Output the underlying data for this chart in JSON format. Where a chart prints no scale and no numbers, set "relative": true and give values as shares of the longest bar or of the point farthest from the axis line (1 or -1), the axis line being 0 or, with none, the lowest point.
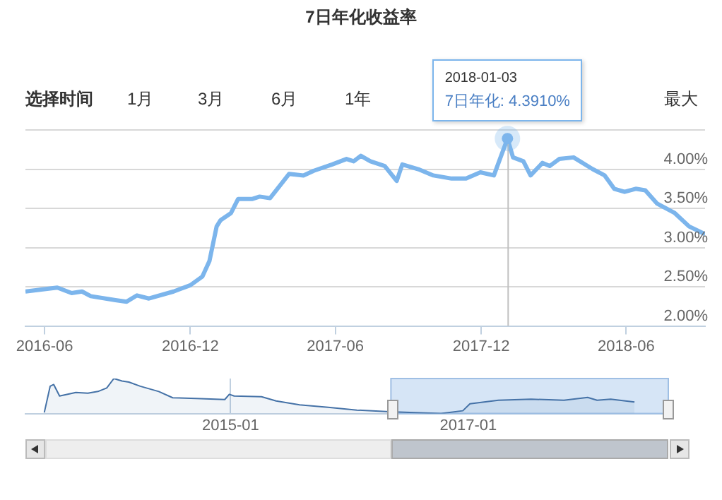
{
  "chart_data": [
    {
      "type": "line",
      "title": "7日年化收益率",
      "color": "#7cb5ec",
      "grid": "y",
      "legend": false,
      "marker": "none",
      "x": [
        "2016-05-08",
        "2016-06-17",
        "2016-07-05",
        "2016-07-18",
        "2016-07-29",
        "2016-08-29",
        "2016-09-12",
        "2016-09-25",
        "2016-10-10",
        "2016-11-10",
        "2016-12-01",
        "2016-12-16",
        "2016-12-25",
        "2017-01-03",
        "2017-01-08",
        "2017-01-21",
        "2017-01-30",
        "2017-02-17",
        "2017-02-26",
        "2017-03-11",
        "2017-04-04",
        "2017-04-22",
        "2017-05-05",
        "2017-05-28",
        "2017-06-15",
        "2017-06-24",
        "2017-07-03",
        "2017-07-15",
        "2017-08-02",
        "2017-08-17",
        "2017-08-24",
        "2017-09-13",
        "2017-10-02",
        "2017-10-25",
        "2017-11-12",
        "2017-11-30",
        "2017-12-17",
        "2018-01-03",
        "2018-01-10",
        "2018-01-23",
        "2018-02-01",
        "2018-02-16",
        "2018-02-25",
        "2018-03-09",
        "2018-03-27",
        "2018-04-20",
        "2018-05-05",
        "2018-05-17",
        "2018-05-30",
        "2018-06-13",
        "2018-06-25",
        "2018-07-10",
        "2018-08-01",
        "2018-08-19",
        "2018-09-08"
      ],
      "values": [
        2.44,
        2.49,
        2.42,
        2.44,
        2.38,
        2.33,
        2.31,
        2.39,
        2.35,
        2.44,
        2.52,
        2.63,
        2.83,
        3.27,
        3.35,
        3.44,
        3.62,
        3.62,
        3.65,
        3.63,
        3.94,
        3.92,
        3.98,
        4.06,
        4.13,
        4.1,
        4.17,
        4.1,
        4.04,
        3.85,
        4.06,
        4.0,
        3.92,
        3.88,
        3.88,
        3.96,
        3.92,
        4.39,
        4.15,
        4.1,
        3.92,
        4.08,
        4.04,
        4.13,
        4.15,
        4.0,
        3.92,
        3.75,
        3.71,
        3.75,
        3.73,
        3.56,
        3.44,
        3.27,
        3.17
      ],
      "xlim": [
        "2016-05-08",
        "2018-09-08"
      ],
      "xticks": [
        {
          "value": "2016-06-01",
          "label": "2016-06"
        },
        {
          "value": "2016-12-01",
          "label": "2016-12"
        },
        {
          "value": "2017-06-01",
          "label": "2017-06"
        },
        {
          "value": "2017-12-01",
          "label": "2017-12"
        },
        {
          "value": "2018-06-01",
          "label": "2018-06"
        }
      ],
      "ylim": [
        2,
        4.5
      ],
      "yticks": [
        {
          "value": 2,
          "label": "2.00%"
        },
        {
          "value": 2.5,
          "label": "2.50%"
        },
        {
          "value": 3,
          "label": "3.00%"
        },
        {
          "value": 3.5,
          "label": "3.50%"
        },
        {
          "value": 4,
          "label": "4.00%"
        },
        {
          "value": 4.5,
          "label": null
        }
      ],
      "annotations": [
        "选择时间",
        "1月",
        "3月",
        "6月",
        "1年",
        "最大",
        "2018-01-03",
        "7日年化: 4.3910%"
      ],
      "ref_lines": [
        {
          "axis": "x",
          "value": "2018-01-03",
          "color": "#c0c0c0"
        }
      ]
    },
    {
      "type": "area",
      "relative": true,
      "color": "#4572a7",
      "grid": "x",
      "legend": false,
      "marker": "none",
      "x": [
        "2013-06-07",
        "2013-06-25",
        "2013-07-06",
        "2013-07-24",
        "2013-09-12",
        "2013-10-19",
        "2013-11-19",
        "2013-12-16",
        "2014-01-07",
        "2014-02-01",
        "2014-02-22",
        "2014-03-29",
        "2014-05-25",
        "2014-07-07",
        "2014-09-17",
        "2014-12-14",
        "2014-12-28",
        "2015-01-12",
        "2015-04-06",
        "2015-05-21",
        "2015-08-01",
        "2015-10-28",
        "2016-01-24",
        "2016-05-03",
        "2016-10-09",
        "2016-12-15",
        "2017-01-06",
        "2017-04-03",
        "2017-07-13",
        "2017-10-22",
        "2018-01-03",
        "2018-02-01",
        "2018-03-15",
        "2018-05-27"
      ],
      "values": [
        0.03,
        0.78,
        0.83,
        0.5,
        0.6,
        0.58,
        0.63,
        0.73,
        1,
        0.93,
        0.9,
        0.78,
        0.63,
        0.45,
        0.43,
        0.4,
        0.55,
        0.5,
        0.48,
        0.36,
        0.25,
        0.18,
        0.1,
        0.05,
        0,
        0.08,
        0.28,
        0.38,
        0.41,
        0.38,
        0.46,
        0.38,
        0.41,
        0.33
      ],
      "xlim": [
        "2013-04-10",
        "2018-09-08"
      ],
      "xticks": [
        {
          "value": "2015-01-01",
          "label": "2015-01"
        },
        {
          "value": "2017-01-01",
          "label": "2017-01"
        }
      ],
      "bands": [
        {
          "axis": "x",
          "from": "2016-05-08",
          "to": "2018-09-08",
          "color": "#d6e5f6"
        }
      ]
    }
  ]
}
